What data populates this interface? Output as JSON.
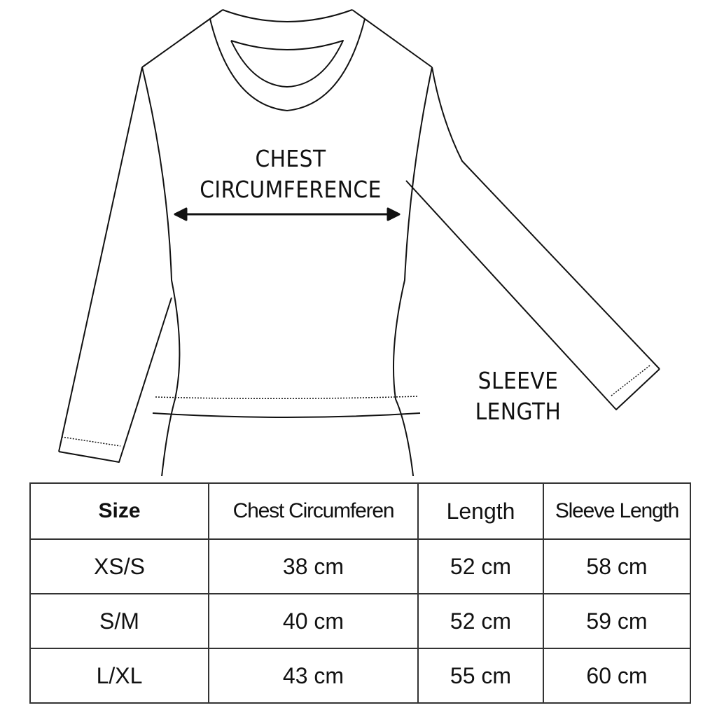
{
  "diagram": {
    "chest_label_line1": "CHEST",
    "chest_label_line2": "CIRCUMFERENCE",
    "sleeve_label_line1": "SLEEVE",
    "sleeve_label_line2": "LENGTH"
  },
  "table": {
    "headers": [
      "Size",
      "Chest Circumferen",
      "Length",
      "Sleeve Length"
    ],
    "rows": [
      [
        "XS/S",
        "38 cm",
        "52 cm",
        "58 cm"
      ],
      [
        "S/M",
        "40 cm",
        "52 cm",
        "59 cm"
      ],
      [
        "L/XL",
        "43 cm",
        "55 cm",
        "60 cm"
      ]
    ]
  }
}
